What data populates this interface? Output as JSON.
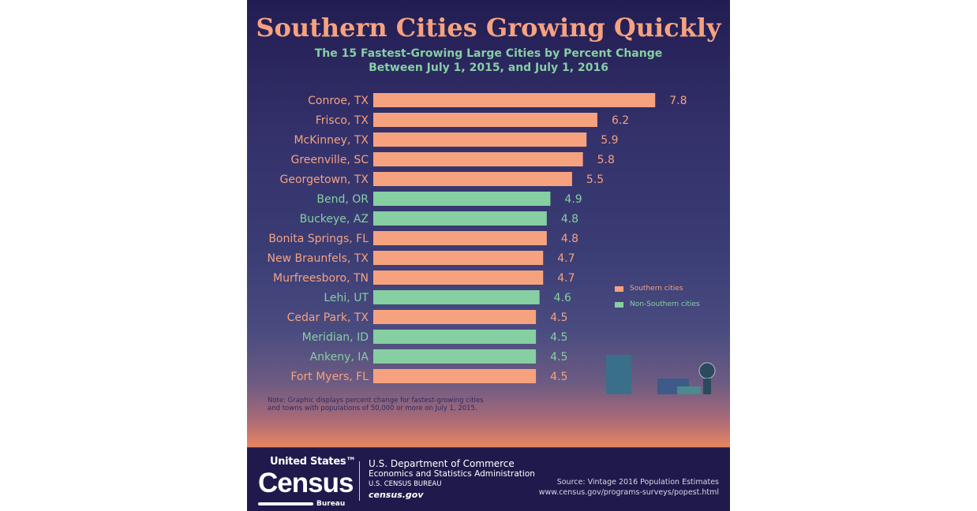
{
  "title": "Southern Cities Growing Quickly",
  "subtitle_line1": "The 15 Fastest-Growing Large Cities by Percent Change",
  "subtitle_line2": "Between July 1, 2015, and July 1, 2016",
  "colors": {
    "southern": "#f6a27f",
    "non_southern": "#86cfa2"
  },
  "chart_data": {
    "type": "bar",
    "orientation": "horizontal",
    "title": "The 15 Fastest-Growing Large Cities by Percent Change Between July 1, 2015, and July 1, 2016",
    "categories": [
      "Conroe, TX",
      "Frisco, TX",
      "McKinney, TX",
      "Greenville, SC",
      "Georgetown, TX",
      "Bend, OR",
      "Buckeye, AZ",
      "Bonita Springs, FL",
      "New Braunfels, TX",
      "Murfreesboro, TN",
      "Lehi, UT",
      "Cedar Park, TX",
      "Meridian, ID",
      "Ankeny, IA",
      "Fort Myers, FL"
    ],
    "values": [
      7.8,
      6.2,
      5.9,
      5.8,
      5.5,
      4.9,
      4.8,
      4.8,
      4.7,
      4.7,
      4.6,
      4.5,
      4.5,
      4.5,
      4.5
    ],
    "group": [
      "Southern cities",
      "Southern cities",
      "Southern cities",
      "Southern cities",
      "Southern cities",
      "Non-Southern cities",
      "Non-Southern cities",
      "Southern cities",
      "Southern cities",
      "Southern cities",
      "Non-Southern cities",
      "Southern cities",
      "Non-Southern cities",
      "Non-Southern cities",
      "Southern cities"
    ],
    "legend": [
      "Southern cities",
      "Non-Southern cities"
    ],
    "legend_position": "right",
    "grid": false
  },
  "note_line1": "Note: Graphic displays percent change for fastest-growing cities",
  "note_line2": "and towns with populations of 50,000 or more on July 1, 2015.",
  "footer": {
    "logo_united_states": "United States™",
    "logo_census": "Census",
    "logo_bureau": "Bureau",
    "dept": "U.S. Department of Commerce",
    "esa": "Economics and Statistics Administration",
    "bureau": "U.S. CENSUS BUREAU",
    "site": "census.gov",
    "source": "Source: Vintage 2016 Population Estimates",
    "source_url": "www.census.gov/programs-surveys/popest.html"
  }
}
